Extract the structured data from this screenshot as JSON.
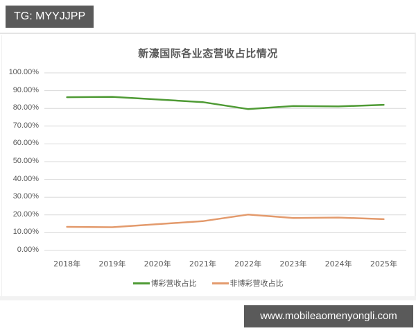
{
  "watermarks": {
    "top_label": "TG: MYYJJPP",
    "bottom_label": "www.mobileaomenyongli.com"
  },
  "colors": {
    "gaming_series": "#4e9a34",
    "non_gaming_series": "#e39a6c",
    "gridline": "#d9d9d9",
    "axis_text": "#595959",
    "watermark_bg": "#5a5a5a"
  },
  "chart_data": {
    "type": "line",
    "title": "新濠国际各业态营收占比情况",
    "xlabel": "",
    "ylabel": "",
    "categories": [
      "2018年",
      "2019年",
      "2020年",
      "2021年",
      "2022年",
      "2023年",
      "2024年",
      "2025年"
    ],
    "series": [
      {
        "name": "博彩营收占比",
        "color": "#4e9a34",
        "values": [
          86.3,
          86.5,
          85.0,
          83.5,
          79.6,
          81.3,
          81.1,
          82.0
        ]
      },
      {
        "name": "非博彩营收占比",
        "color": "#e39a6c",
        "values": [
          13.3,
          13.1,
          14.8,
          16.5,
          20.2,
          18.3,
          18.5,
          17.6
        ]
      }
    ],
    "yticks": [
      "0.00%",
      "10.00%",
      "20.00%",
      "30.00%",
      "40.00%",
      "50.00%",
      "60.00%",
      "70.00%",
      "80.00%",
      "90.00%",
      "100.00%"
    ],
    "ylim": [
      0,
      100
    ],
    "grid": true,
    "legend_position": "bottom"
  }
}
